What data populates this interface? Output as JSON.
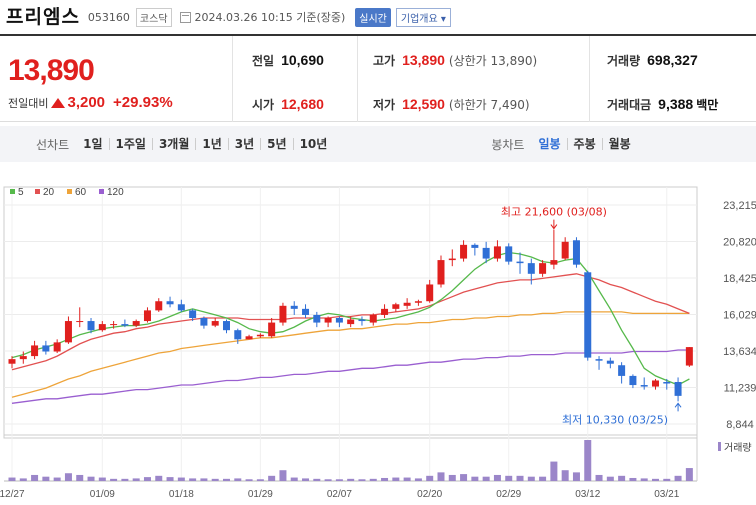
{
  "header": {
    "name": "프리엠스",
    "code": "053160",
    "market": "코스닥",
    "datetime": "2024.03.26 10:15 기준(장중)",
    "realtime_btn": "실시간",
    "overview_btn": "기업개요 ▾"
  },
  "price": {
    "current": "13,890",
    "change_label": "전일대비",
    "change_amt": "3,200",
    "change_pct": "+29.93%"
  },
  "stats": {
    "prev_label": "전일",
    "prev": "10,690",
    "open_label": "시가",
    "open": "12,680",
    "high_label": "고가",
    "high": "13,890",
    "high_sub": "(상한가 13,890)",
    "low_label": "저가",
    "low": "12,590",
    "low_sub": "(하한가 7,490)",
    "vol_label": "거래량",
    "vol": "698,327",
    "amt_label": "거래대금",
    "amt": "9,388",
    "amt_unit": "백만"
  },
  "periods": {
    "line_label": "선차트",
    "line_items": [
      "1일",
      "1주일",
      "3개월",
      "1년",
      "3년",
      "5년",
      "10년"
    ],
    "candle_label": "봉차트",
    "candle_items": [
      "일봉",
      "주봉",
      "월봉"
    ],
    "active_candle": "일봉"
  },
  "colors": {
    "up": "#e0201e",
    "down": "#2f6fd6",
    "ma5": "#56b94b",
    "ma20": "#e25151",
    "ma60": "#eea43a",
    "ma120": "#9a5fd0",
    "volume": "#9b86c9"
  },
  "chart_data": {
    "type": "candlestick",
    "legend": [
      {
        "name": "5",
        "color": "#56b94b"
      },
      {
        "name": "20",
        "color": "#e25151"
      },
      {
        "name": "60",
        "color": "#eea43a"
      },
      {
        "name": "120",
        "color": "#9a5fd0"
      }
    ],
    "y_ticks": [
      "23,215",
      "20,820",
      "18,425",
      "16,029",
      "13,634",
      "11,239",
      "8,844"
    ],
    "ylim": [
      8844,
      23215
    ],
    "x_tick_labels": [
      "12/27",
      "01/09",
      "01/18",
      "01/29",
      "02/07",
      "02/20",
      "02/29",
      "03/12",
      "03/21"
    ],
    "x_tick_index": [
      0,
      8,
      15,
      22,
      29,
      37,
      44,
      51,
      58
    ],
    "volume_label": "거래량",
    "annotations": {
      "high": "최고 21,600 (03/08)",
      "high_index": 48,
      "high_value": 21600,
      "low": "최저 10,330 (03/25)",
      "low_index": 59,
      "low_value": 10330
    },
    "candles": [
      {
        "o": 12800,
        "h": 13300,
        "l": 12500,
        "c": 13100
      },
      {
        "o": 13100,
        "h": 13600,
        "l": 12800,
        "c": 13300
      },
      {
        "o": 13300,
        "h": 14300,
        "l": 13100,
        "c": 14000
      },
      {
        "o": 14000,
        "h": 14300,
        "l": 13400,
        "c": 13600
      },
      {
        "o": 13600,
        "h": 14400,
        "l": 13500,
        "c": 14200
      },
      {
        "o": 14200,
        "h": 15900,
        "l": 14100,
        "c": 15600
      },
      {
        "o": 15600,
        "h": 16500,
        "l": 15200,
        "c": 15600
      },
      {
        "o": 15600,
        "h": 15800,
        "l": 14800,
        "c": 15000
      },
      {
        "o": 15000,
        "h": 15600,
        "l": 14900,
        "c": 15400
      },
      {
        "o": 15400,
        "h": 15600,
        "l": 15100,
        "c": 15400
      },
      {
        "o": 15400,
        "h": 15700,
        "l": 15200,
        "c": 15300
      },
      {
        "o": 15300,
        "h": 15700,
        "l": 15200,
        "c": 15600
      },
      {
        "o": 15600,
        "h": 16500,
        "l": 15500,
        "c": 16300
      },
      {
        "o": 16300,
        "h": 17100,
        "l": 16200,
        "c": 16900
      },
      {
        "o": 16900,
        "h": 17200,
        "l": 16500,
        "c": 16700
      },
      {
        "o": 16700,
        "h": 17000,
        "l": 16200,
        "c": 16300
      },
      {
        "o": 16300,
        "h": 16400,
        "l": 15600,
        "c": 15800
      },
      {
        "o": 15800,
        "h": 15900,
        "l": 15100,
        "c": 15300
      },
      {
        "o": 15300,
        "h": 15800,
        "l": 15200,
        "c": 15600
      },
      {
        "o": 15600,
        "h": 15700,
        "l": 14800,
        "c": 15000
      },
      {
        "o": 15000,
        "h": 15100,
        "l": 14100,
        "c": 14400
      },
      {
        "o": 14400,
        "h": 14700,
        "l": 14400,
        "c": 14600
      },
      {
        "o": 14600,
        "h": 14800,
        "l": 14500,
        "c": 14700
      },
      {
        "o": 14600,
        "h": 15800,
        "l": 14500,
        "c": 15500
      },
      {
        "o": 15500,
        "h": 16800,
        "l": 15300,
        "c": 16600
      },
      {
        "o": 16600,
        "h": 16900,
        "l": 16000,
        "c": 16400
      },
      {
        "o": 16400,
        "h": 16700,
        "l": 15800,
        "c": 16000
      },
      {
        "o": 16000,
        "h": 16200,
        "l": 15200,
        "c": 15500
      },
      {
        "o": 15500,
        "h": 15900,
        "l": 15200,
        "c": 15800
      },
      {
        "o": 15800,
        "h": 15900,
        "l": 15200,
        "c": 15500
      },
      {
        "o": 15400,
        "h": 15900,
        "l": 15200,
        "c": 15700
      },
      {
        "o": 15700,
        "h": 15900,
        "l": 15300,
        "c": 15600
      },
      {
        "o": 15500,
        "h": 16100,
        "l": 15300,
        "c": 16000
      },
      {
        "o": 16000,
        "h": 16700,
        "l": 15800,
        "c": 16400
      },
      {
        "o": 16400,
        "h": 16800,
        "l": 16200,
        "c": 16700
      },
      {
        "o": 16600,
        "h": 17100,
        "l": 16400,
        "c": 16800
      },
      {
        "o": 16800,
        "h": 17000,
        "l": 16600,
        "c": 16900
      },
      {
        "o": 16900,
        "h": 18300,
        "l": 16800,
        "c": 18000
      },
      {
        "o": 18000,
        "h": 19900,
        "l": 17800,
        "c": 19600
      },
      {
        "o": 19600,
        "h": 20300,
        "l": 19200,
        "c": 19700
      },
      {
        "o": 19700,
        "h": 20900,
        "l": 19500,
        "c": 20600
      },
      {
        "o": 20600,
        "h": 20700,
        "l": 19900,
        "c": 20400
      },
      {
        "o": 20400,
        "h": 20800,
        "l": 19400,
        "c": 19700
      },
      {
        "o": 19700,
        "h": 20900,
        "l": 19500,
        "c": 20500
      },
      {
        "o": 20500,
        "h": 20700,
        "l": 19300,
        "c": 19500
      },
      {
        "o": 19500,
        "h": 20100,
        "l": 18700,
        "c": 19400
      },
      {
        "o": 19400,
        "h": 19700,
        "l": 18000,
        "c": 18700
      },
      {
        "o": 18700,
        "h": 19600,
        "l": 18500,
        "c": 19400
      },
      {
        "o": 19300,
        "h": 21600,
        "l": 19000,
        "c": 19600
      },
      {
        "o": 19700,
        "h": 21100,
        "l": 19600,
        "c": 20800
      },
      {
        "o": 20900,
        "h": 21100,
        "l": 19100,
        "c": 19300
      },
      {
        "o": 18800,
        "h": 18900,
        "l": 13000,
        "c": 13200
      },
      {
        "o": 13100,
        "h": 13300,
        "l": 12400,
        "c": 13000
      },
      {
        "o": 13000,
        "h": 13200,
        "l": 12500,
        "c": 12800
      },
      {
        "o": 12700,
        "h": 12900,
        "l": 11500,
        "c": 12000
      },
      {
        "o": 12000,
        "h": 12100,
        "l": 11200,
        "c": 11400
      },
      {
        "o": 11400,
        "h": 11900,
        "l": 11100,
        "c": 11300
      },
      {
        "o": 11300,
        "h": 11800,
        "l": 11100,
        "c": 11700
      },
      {
        "o": 11600,
        "h": 11800,
        "l": 11100,
        "c": 11500
      },
      {
        "o": 11600,
        "h": 11900,
        "l": 10330,
        "c": 10690
      },
      {
        "o": 12680,
        "h": 13890,
        "l": 12590,
        "c": 13890
      }
    ],
    "ma5": [
      13200,
      13400,
      13700,
      13900,
      14100,
      14400,
      14700,
      14900,
      15100,
      15200,
      15300,
      15300,
      15400,
      15600,
      15900,
      16200,
      16400,
      16200,
      16000,
      15800,
      15500,
      15100,
      14900,
      14800,
      14900,
      15200,
      15600,
      15900,
      16100,
      16000,
      15800,
      15700,
      15600,
      15700,
      15800,
      16000,
      16200,
      16500,
      17000,
      17600,
      18300,
      19000,
      19500,
      19900,
      20100,
      20000,
      19800,
      19500,
      19400,
      19600,
      19700,
      18800,
      17600,
      16400,
      15000,
      13800,
      12500,
      12000,
      11700,
      11400,
      11800
    ],
    "ma20": [
      12400,
      12600,
      12800,
      13000,
      13300,
      13700,
      14100,
      14400,
      14600,
      14800,
      14900,
      15100,
      15200,
      15400,
      15500,
      15600,
      15700,
      15800,
      15800,
      15800,
      15800,
      15700,
      15700,
      15700,
      15700,
      15800,
      15800,
      15800,
      15800,
      15900,
      15900,
      16000,
      16000,
      16100,
      16200,
      16300,
      16400,
      16600,
      16900,
      17200,
      17500,
      17700,
      17900,
      18100,
      18200,
      18300,
      18300,
      18400,
      18500,
      18600,
      18700,
      18500,
      18300,
      18000,
      17800,
      17500,
      17200,
      16900,
      16700,
      16400,
      16100
    ],
    "ma60": [
      10600,
      10800,
      11000,
      11200,
      11500,
      11800,
      12000,
      12300,
      12500,
      12700,
      12900,
      13100,
      13300,
      13500,
      13600,
      13800,
      13900,
      14000,
      14100,
      14200,
      14300,
      14400,
      14500,
      14500,
      14600,
      14700,
      14800,
      14900,
      15000,
      15000,
      15100,
      15100,
      15200,
      15300,
      15400,
      15400,
      15500,
      15500,
      15600,
      15700,
      15700,
      15800,
      15800,
      15900,
      15900,
      16000,
      16000,
      16100,
      16100,
      16200,
      16200,
      16200,
      16200,
      16200,
      16200,
      16100,
      16100,
      16100,
      16100,
      16100,
      16100
    ],
    "ma120": [
      10200,
      10300,
      10400,
      10500,
      10500,
      10600,
      10700,
      10800,
      10800,
      10900,
      11000,
      11100,
      11100,
      11200,
      11300,
      11400,
      11400,
      11500,
      11600,
      11700,
      11700,
      11800,
      11900,
      11900,
      12000,
      12100,
      12100,
      12200,
      12300,
      12300,
      12400,
      12500,
      12500,
      12600,
      12700,
      12700,
      12800,
      12900,
      12900,
      13000,
      13100,
      13100,
      13200,
      13200,
      13300,
      13300,
      13400,
      13400,
      13400,
      13500,
      13500,
      13500,
      13500,
      13500,
      13500,
      13600,
      13600,
      13600,
      13600,
      13700,
      13700
    ],
    "volume": [
      8,
      6,
      14,
      10,
      8,
      18,
      14,
      10,
      8,
      5,
      5,
      6,
      9,
      12,
      9,
      8,
      6,
      6,
      5,
      5,
      6,
      4,
      4,
      12,
      25,
      8,
      6,
      5,
      4,
      4,
      5,
      4,
      5,
      7,
      8,
      8,
      6,
      12,
      20,
      14,
      16,
      10,
      10,
      14,
      12,
      12,
      10,
      10,
      45,
      25,
      20,
      95,
      14,
      10,
      12,
      7,
      6,
      5,
      5,
      12,
      30
    ]
  }
}
